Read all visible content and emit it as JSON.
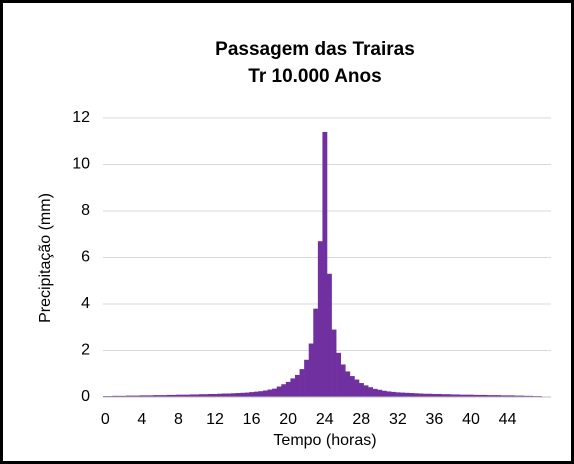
{
  "chart_data": {
    "type": "bar",
    "title": "Passagem das Trairas",
    "subtitle": "Tr 10.000 Anos",
    "x_label": "Tempo (horas)",
    "y_label": "Precipitação (mm)",
    "color": "#7030a0",
    "grid": true,
    "x": [
      0,
      0.5,
      1,
      1.5,
      2,
      2.5,
      3,
      3.5,
      4,
      4.5,
      5,
      5.5,
      6,
      6.5,
      7,
      7.5,
      8,
      8.5,
      9,
      9.5,
      10,
      10.5,
      11,
      11.5,
      12,
      12.5,
      13,
      13.5,
      14,
      14.5,
      15,
      15.5,
      16,
      16.5,
      17,
      17.5,
      18,
      18.5,
      19,
      19.5,
      20,
      20.5,
      21,
      21.5,
      22,
      22.5,
      23,
      23.5,
      24,
      24.5,
      25,
      25.5,
      26,
      26.5,
      27,
      27.5,
      28,
      28.5,
      29,
      29.5,
      30,
      30.5,
      31,
      31.5,
      32,
      32.5,
      33,
      33.5,
      34,
      34.5,
      35,
      35.5,
      36,
      36.5,
      37,
      37.5,
      38,
      38.5,
      39,
      39.5,
      40,
      40.5,
      41,
      41.5,
      42,
      42.5,
      43,
      43.5,
      44,
      44.5,
      45,
      45.5,
      46,
      46.5,
      47,
      47.5
    ],
    "values": [
      0.04,
      0.04,
      0.05,
      0.05,
      0.05,
      0.06,
      0.06,
      0.06,
      0.07,
      0.07,
      0.07,
      0.08,
      0.08,
      0.08,
      0.09,
      0.09,
      0.1,
      0.1,
      0.1,
      0.11,
      0.11,
      0.12,
      0.12,
      0.13,
      0.13,
      0.14,
      0.15,
      0.15,
      0.16,
      0.17,
      0.18,
      0.19,
      0.21,
      0.23,
      0.25,
      0.28,
      0.32,
      0.36,
      0.45,
      0.55,
      0.65,
      0.8,
      0.95,
      1.2,
      1.6,
      2.3,
      3.8,
      6.7,
      11.4,
      5.3,
      2.9,
      1.9,
      1.4,
      1.1,
      0.9,
      0.75,
      0.6,
      0.5,
      0.42,
      0.35,
      0.31,
      0.27,
      0.24,
      0.22,
      0.2,
      0.19,
      0.18,
      0.17,
      0.16,
      0.15,
      0.14,
      0.14,
      0.13,
      0.13,
      0.12,
      0.12,
      0.11,
      0.11,
      0.1,
      0.1,
      0.1,
      0.09,
      0.09,
      0.09,
      0.08,
      0.08,
      0.08,
      0.07,
      0.07,
      0.07,
      0.06,
      0.06,
      0.05,
      0.05,
      0.04,
      0.04
    ],
    "bar_width": 0.5,
    "xlim": [
      -0.25,
      48.75
    ],
    "xticks": [
      0,
      4,
      8,
      12,
      16,
      20,
      24,
      28,
      32,
      36,
      40,
      44
    ],
    "ylim": [
      0,
      12
    ],
    "yticks": [
      0,
      2,
      4,
      6,
      8,
      10,
      12
    ]
  }
}
